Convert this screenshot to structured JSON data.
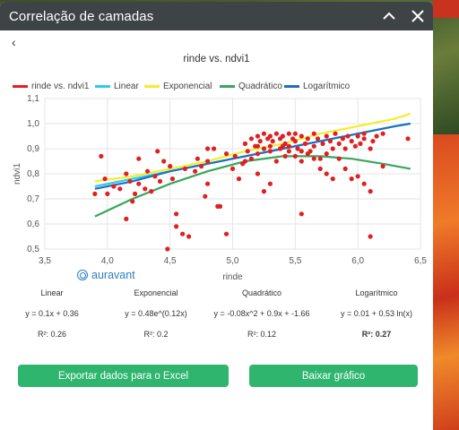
{
  "panel": {
    "title": "Correlação de camadas",
    "back_glyph": "‹"
  },
  "colors": {
    "header_bg": "#3e4346",
    "accent_green": "#2fb56e",
    "points": "#e02020",
    "linear": "#31c9e8",
    "exponential": "#f4ee2a",
    "quadratic": "#3aa55c",
    "logarithmic": "#1d6fc2"
  },
  "icons": {
    "collapse": "chevron-up-icon",
    "close": "close-icon",
    "back": "chevron-left-icon",
    "brand": "auravant-logo-icon"
  },
  "brand": {
    "name": "auravant"
  },
  "chart_data": {
    "type": "scatter",
    "title": "rinde vs. ndvi1",
    "xlabel": "rinde",
    "ylabel": "ndvi1",
    "xlim": [
      3.5,
      6.5
    ],
    "ylim": [
      0.5,
      1.1
    ],
    "x_ticks": [
      "3,5",
      "4,0",
      "4,5",
      "5,0",
      "5,5",
      "6,0",
      "6,5"
    ],
    "y_ticks": [
      "0,5",
      "0,6",
      "0,7",
      "0,8",
      "0,9",
      "1,0",
      "1,1"
    ],
    "grid": true,
    "legend_position": "top",
    "legend": [
      "rinde vs. ndvi1",
      "Linear",
      "Exponencial",
      "Quadrático",
      "Logarítmico"
    ],
    "points": [
      [
        3.9,
        0.72
      ],
      [
        3.95,
        0.87
      ],
      [
        3.98,
        0.78
      ],
      [
        4.05,
        0.75
      ],
      [
        4.1,
        0.74
      ],
      [
        4.15,
        0.62
      ],
      [
        4.15,
        0.8
      ],
      [
        4.18,
        0.77
      ],
      [
        4.2,
        0.69
      ],
      [
        4.22,
        0.72
      ],
      [
        4.25,
        0.86
      ],
      [
        4.25,
        0.76
      ],
      [
        4.3,
        0.74
      ],
      [
        4.32,
        0.81
      ],
      [
        4.35,
        0.73
      ],
      [
        4.38,
        0.79
      ],
      [
        4.4,
        0.89
      ],
      [
        4.42,
        0.77
      ],
      [
        4.45,
        0.85
      ],
      [
        4.48,
        0.5
      ],
      [
        4.5,
        0.83
      ],
      [
        4.52,
        0.78
      ],
      [
        4.55,
        0.64
      ],
      [
        4.55,
        0.59
      ],
      [
        4.6,
        0.56
      ],
      [
        4.62,
        0.82
      ],
      [
        4.65,
        0.55
      ],
      [
        4.7,
        0.81
      ],
      [
        4.72,
        0.86
      ],
      [
        4.75,
        0.83
      ],
      [
        4.78,
        0.71
      ],
      [
        4.8,
        0.76
      ],
      [
        4.8,
        0.85
      ],
      [
        4.85,
        0.9
      ],
      [
        4.88,
        0.67
      ],
      [
        4.9,
        0.67
      ],
      [
        4.95,
        0.56
      ],
      [
        4.95,
        0.88
      ],
      [
        5.0,
        0.82
      ],
      [
        5.02,
        0.87
      ],
      [
        5.05,
        0.78
      ],
      [
        5.08,
        0.84
      ],
      [
        5.1,
        0.92
      ],
      [
        5.12,
        0.89
      ],
      [
        5.15,
        0.86
      ],
      [
        5.15,
        0.94
      ],
      [
        5.18,
        0.91
      ],
      [
        5.2,
        0.88
      ],
      [
        5.2,
        0.95
      ],
      [
        5.22,
        0.93
      ],
      [
        5.25,
        0.9
      ],
      [
        5.25,
        0.96
      ],
      [
        5.28,
        0.94
      ],
      [
        5.3,
        0.89
      ],
      [
        5.3,
        0.95
      ],
      [
        5.32,
        0.93
      ],
      [
        5.35,
        0.85
      ],
      [
        5.35,
        0.96
      ],
      [
        5.38,
        0.9
      ],
      [
        5.38,
        0.94
      ],
      [
        5.4,
        0.95
      ],
      [
        5.42,
        0.87
      ],
      [
        5.42,
        0.92
      ],
      [
        5.45,
        0.96
      ],
      [
        5.45,
        0.89
      ],
      [
        5.48,
        0.94
      ],
      [
        5.5,
        0.93
      ],
      [
        5.5,
        0.96
      ],
      [
        5.52,
        0.9
      ],
      [
        5.55,
        0.95
      ],
      [
        5.55,
        0.85
      ],
      [
        5.58,
        0.92
      ],
      [
        5.6,
        0.94
      ],
      [
        5.62,
        0.89
      ],
      [
        5.65,
        0.96
      ],
      [
        5.65,
        0.91
      ],
      [
        5.68,
        0.94
      ],
      [
        5.7,
        0.82
      ],
      [
        5.72,
        0.92
      ],
      [
        5.75,
        0.95
      ],
      [
        5.75,
        0.88
      ],
      [
        5.78,
        0.93
      ],
      [
        5.8,
        0.9
      ],
      [
        5.82,
        0.96
      ],
      [
        5.85,
        0.92
      ],
      [
        5.88,
        0.94
      ],
      [
        5.9,
        0.9
      ],
      [
        5.92,
        0.95
      ],
      [
        5.95,
        0.93
      ],
      [
        5.98,
        0.91
      ],
      [
        6.0,
        0.95
      ],
      [
        6.02,
        0.92
      ],
      [
        6.05,
        0.94
      ],
      [
        6.1,
        0.9
      ],
      [
        6.12,
        0.93
      ],
      [
        6.15,
        0.95
      ],
      [
        5.6,
        0.88
      ],
      [
        5.65,
        0.86
      ],
      [
        5.7,
        0.86
      ],
      [
        5.75,
        0.8
      ],
      [
        5.8,
        0.78
      ],
      [
        5.85,
        0.86
      ],
      [
        5.9,
        0.82
      ],
      [
        5.95,
        0.78
      ],
      [
        6.0,
        0.79
      ],
      [
        6.05,
        0.76
      ],
      [
        5.55,
        0.64
      ],
      [
        5.2,
        0.8
      ],
      [
        5.25,
        0.73
      ],
      [
        5.3,
        0.76
      ],
      [
        6.1,
        0.73
      ],
      [
        6.2,
        0.83
      ],
      [
        6.1,
        0.55
      ],
      [
        6.4,
        0.94
      ],
      [
        5.4,
        0.91
      ],
      [
        5.3,
        0.91
      ],
      [
        5.2,
        0.91
      ],
      [
        5.45,
        0.91
      ],
      [
        5.5,
        0.87
      ],
      [
        5.55,
        0.89
      ],
      [
        6.2,
        0.96
      ],
      [
        6.05,
        0.96
      ],
      [
        4.0,
        0.72
      ],
      [
        4.8,
        0.9
      ],
      [
        5.1,
        0.85
      ]
    ],
    "series": [
      {
        "name": "Linear",
        "x": [
          3.9,
          4.2,
          4.5,
          4.8,
          5.1,
          5.4,
          5.7,
          6.0,
          6.3,
          6.42
        ],
        "y": [
          0.75,
          0.78,
          0.81,
          0.84,
          0.87,
          0.9,
          0.93,
          0.96,
          0.99,
          1.0
        ]
      },
      {
        "name": "Exponencial",
        "x": [
          3.9,
          4.2,
          4.5,
          4.8,
          5.1,
          5.4,
          5.7,
          6.0,
          6.3,
          6.42
        ],
        "y": [
          0.77,
          0.79,
          0.82,
          0.85,
          0.89,
          0.92,
          0.96,
          0.99,
          1.02,
          1.04
        ]
      },
      {
        "name": "Quadrático",
        "x": [
          3.9,
          4.2,
          4.5,
          4.8,
          5.1,
          5.4,
          5.7,
          5.95,
          6.2,
          6.42
        ],
        "y": [
          0.63,
          0.7,
          0.76,
          0.81,
          0.85,
          0.87,
          0.87,
          0.86,
          0.84,
          0.82
        ]
      },
      {
        "name": "Logarítmico",
        "x": [
          3.9,
          4.2,
          4.5,
          4.8,
          5.1,
          5.4,
          5.7,
          6.0,
          6.3,
          6.42
        ],
        "y": [
          0.74,
          0.77,
          0.81,
          0.84,
          0.87,
          0.9,
          0.93,
          0.96,
          0.99,
          1.0
        ]
      }
    ]
  },
  "models": [
    {
      "name": "Linear",
      "equation": "y = 0.1x + 0.36",
      "r2": "R²: 0.26"
    },
    {
      "name": "Exponencial",
      "equation": "y = 0.48e^(0.12x)",
      "r2": "R²: 0.2"
    },
    {
      "name": "Quadrático",
      "equation": "y = -0.08x^2 + 0.9x + -1.66",
      "r2": "R²: 0.12"
    },
    {
      "name": "Logarítmico",
      "equation": "y = 0.01 + 0.53 ln(x)",
      "r2": "R²: 0.27"
    }
  ],
  "actions": {
    "export_label": "Exportar dados para o Excel",
    "download_label": "Baixar gráfico"
  }
}
